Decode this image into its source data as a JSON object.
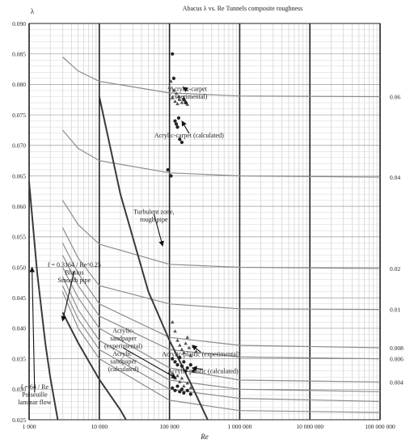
{
  "chart_data": {
    "type": "line",
    "title": "Abacus λ vs. Re Tunnels composite roughness",
    "xlabel": "Re",
    "ylabel": "λ",
    "xscale": "log",
    "xlim": [
      1000,
      100000000
    ],
    "ylim": [
      0.025,
      0.09
    ],
    "grid": true,
    "x_ticks": [
      {
        "value": 1000,
        "label": "1 000"
      },
      {
        "value": 10000,
        "label": "10 000"
      },
      {
        "value": 100000,
        "label": "100 000"
      },
      {
        "value": 1000000,
        "label": "1 000 000"
      },
      {
        "value": 10000000,
        "label": "10 000 000"
      },
      {
        "value": 100000000,
        "label": "100 000 000"
      }
    ],
    "y_ticks": [
      "0.025",
      "0.030",
      "0.035",
      "0.040",
      "0.045",
      "0.050",
      "0.055",
      "0.060",
      "0.065",
      "0.070",
      "0.075",
      "0.080",
      "0.085",
      "0.090"
    ],
    "curve_labels": [
      "0.06",
      "0.04",
      "0.02",
      "0.01",
      "0.008",
      "0.006",
      "0.004"
    ],
    "relative_roughness_curves": [
      {
        "label": "0.06",
        "points": [
          [
            3000,
            0.0845
          ],
          [
            5000,
            0.0822
          ],
          [
            10000,
            0.0805
          ],
          [
            100000,
            0.0786
          ],
          [
            1000000,
            0.0781
          ],
          [
            100000000,
            0.078
          ]
        ]
      },
      {
        "label": "0.04",
        "points": [
          [
            3000,
            0.0725
          ],
          [
            5000,
            0.0695
          ],
          [
            10000,
            0.0675
          ],
          [
            100000,
            0.0655
          ],
          [
            1000000,
            0.065
          ],
          [
            100000000,
            0.0648
          ]
        ]
      },
      {
        "label": "0.02",
        "points": [
          [
            3000,
            0.061
          ],
          [
            5000,
            0.057
          ],
          [
            10000,
            0.0538
          ],
          [
            100000,
            0.0505
          ],
          [
            1000000,
            0.05
          ],
          [
            100000000,
            0.0498
          ]
        ]
      },
      {
        "label": "0.01",
        "points": [
          [
            3000,
            0.0565
          ],
          [
            5000,
            0.0515
          ],
          [
            10000,
            0.047
          ],
          [
            100000,
            0.044
          ],
          [
            1000000,
            0.0432
          ],
          [
            100000000,
            0.0431
          ]
        ]
      },
      {
        "label": "0.008",
        "points": [
          [
            3000,
            0.054
          ],
          [
            5000,
            0.049
          ],
          [
            10000,
            0.044
          ],
          [
            100000,
            0.0385
          ],
          [
            1000000,
            0.0372
          ],
          [
            100000000,
            0.0368
          ]
        ]
      },
      {
        "label": "0.006",
        "points": [
          [
            3000,
            0.052
          ],
          [
            5000,
            0.047
          ],
          [
            10000,
            0.042
          ],
          [
            100000,
            0.0365
          ],
          [
            1000000,
            0.0353
          ],
          [
            100000000,
            0.035
          ]
        ]
      },
      {
        "label": "0.004",
        "points": [
          [
            3000,
            0.05
          ],
          [
            5000,
            0.045
          ],
          [
            10000,
            0.04
          ],
          [
            100000,
            0.0335
          ],
          [
            1000000,
            0.0315
          ],
          [
            100000000,
            0.0312
          ]
        ]
      },
      {
        "label": "",
        "points": [
          [
            3000,
            0.0485
          ],
          [
            5000,
            0.043
          ],
          [
            10000,
            0.038
          ],
          [
            100000,
            0.0315
          ],
          [
            1000000,
            0.03
          ],
          [
            100000000,
            0.0296
          ]
        ]
      },
      {
        "label": "",
        "points": [
          [
            3000,
            0.047
          ],
          [
            5000,
            0.0415
          ],
          [
            10000,
            0.0365
          ],
          [
            100000,
            0.03
          ],
          [
            1000000,
            0.0285
          ],
          [
            100000000,
            0.028
          ]
        ]
      },
      {
        "label": "",
        "points": [
          [
            3000,
            0.046
          ],
          [
            5000,
            0.04
          ],
          [
            10000,
            0.035
          ],
          [
            100000,
            0.0282
          ],
          [
            1000000,
            0.0265
          ],
          [
            100000000,
            0.0262
          ]
        ]
      }
    ],
    "reference_curves": [
      {
        "name": "f = 64 / Re Poiseuille laminar flow",
        "points": [
          [
            1000,
            0.064
          ],
          [
            1300,
            0.0492
          ],
          [
            1700,
            0.0376
          ],
          [
            2000,
            0.032
          ],
          [
            2560,
            0.025
          ]
        ]
      },
      {
        "name": "f = 0.3164 / Re^0.25 Blasius Smooth pipe",
        "points": [
          [
            3000,
            0.0426
          ],
          [
            5000,
            0.0376
          ],
          [
            10000,
            0.0316
          ],
          [
            20000,
            0.0266
          ],
          [
            24000,
            0.025
          ]
        ]
      },
      {
        "name": "Turbulent zone, rough pipe",
        "points": [
          [
            10000,
            0.078
          ],
          [
            20000,
            0.062
          ],
          [
            50000,
            0.046
          ],
          [
            100000,
            0.038
          ],
          [
            200000,
            0.031
          ],
          [
            350000,
            0.025
          ]
        ]
      }
    ],
    "series": [
      {
        "name": "Acrylic-carpet (experimental)",
        "marker": "triangle",
        "points": [
          [
            100000,
            0.0795
          ],
          [
            105000,
            0.0805
          ],
          [
            110000,
            0.0778
          ],
          [
            115000,
            0.079
          ],
          [
            120000,
            0.0772
          ],
          [
            125000,
            0.0785
          ],
          [
            130000,
            0.0768
          ],
          [
            135000,
            0.078
          ],
          [
            140000,
            0.0775
          ],
          [
            150000,
            0.077
          ],
          [
            160000,
            0.0778
          ],
          [
            170000,
            0.0772
          ],
          [
            180000,
            0.0767
          ]
        ]
      },
      {
        "name": "Acrylic-carpet (calculated)",
        "marker": "circle",
        "points": [
          [
            95000,
            0.066
          ],
          [
            105000,
            0.065
          ],
          [
            110000,
            0.085
          ],
          [
            115000,
            0.081
          ],
          [
            120000,
            0.074
          ],
          [
            125000,
            0.0735
          ],
          [
            130000,
            0.073
          ],
          [
            135000,
            0.0745
          ],
          [
            140000,
            0.071
          ],
          [
            150000,
            0.0705
          ],
          [
            160000,
            0.0775
          ],
          [
            170000,
            0.077
          ]
        ]
      },
      {
        "name": "Acrylic-plastic (experimental)",
        "marker": "triangle",
        "points": [
          [
            110000,
            0.041
          ],
          [
            120000,
            0.0395
          ],
          [
            130000,
            0.038
          ],
          [
            140000,
            0.0372
          ],
          [
            150000,
            0.0365
          ],
          [
            160000,
            0.036
          ],
          [
            170000,
            0.0375
          ],
          [
            180000,
            0.0385
          ],
          [
            190000,
            0.0368
          ],
          [
            200000,
            0.0355
          ],
          [
            220000,
            0.037
          ],
          [
            240000,
            0.0362
          ]
        ]
      },
      {
        "name": "Acrylic-plastic (calculated)",
        "marker": "circle",
        "points": [
          [
            110000,
            0.035
          ],
          [
            120000,
            0.0345
          ],
          [
            130000,
            0.034
          ],
          [
            140000,
            0.0352
          ],
          [
            150000,
            0.0338
          ],
          [
            160000,
            0.0345
          ],
          [
            170000,
            0.033
          ],
          [
            180000,
            0.0335
          ],
          [
            200000,
            0.034
          ],
          [
            220000,
            0.033
          ]
        ]
      },
      {
        "name": "Acrylic-sandpaper (experimental)",
        "marker": "triangle",
        "points": [
          [
            110000,
            0.0325
          ],
          [
            120000,
            0.0318
          ],
          [
            130000,
            0.0322
          ],
          [
            140000,
            0.0312
          ],
          [
            150000,
            0.0318
          ],
          [
            160000,
            0.0305
          ],
          [
            180000,
            0.031
          ],
          [
            200000,
            0.0302
          ]
        ]
      },
      {
        "name": "Acrylic-sandpaper (calculated)",
        "marker": "circle",
        "points": [
          [
            110000,
            0.0302
          ],
          [
            120000,
            0.0298
          ],
          [
            130000,
            0.0305
          ],
          [
            140000,
            0.0296
          ],
          [
            150000,
            0.03
          ],
          [
            160000,
            0.0294
          ],
          [
            180000,
            0.0298
          ],
          [
            200000,
            0.0292
          ]
        ]
      }
    ],
    "annotations": [
      {
        "lines": [
          "Acrylic-carpet",
          "(experimental)"
        ],
        "at": [
          185000,
          0.0787
        ],
        "arrow_to": [
          155000,
          0.0795
        ]
      },
      {
        "lines": [
          "Acrylic-carpet (calculated)"
        ],
        "at": [
          190000,
          0.0717
        ],
        "arrow_to": [
          150000,
          0.074
        ]
      },
      {
        "lines": [
          "Turbulent zone,",
          "rough pipe"
        ],
        "at": [
          60000,
          0.0585
        ],
        "arrow_to": [
          80000,
          0.0535
        ]
      },
      {
        "lines": [
          "f = 0.3164 / Re^0.25",
          "Blasius",
          "Smooth pipe"
        ],
        "at": [
          4400,
          0.0492
        ],
        "arrow_to": [
          3000,
          0.0412
        ]
      },
      {
        "lines": [
          "Acrylic-plastic (experimental)"
        ],
        "at": [
          280000,
          0.0358
        ],
        "arrow_to": [
          210000,
          0.0372
        ]
      },
      {
        "lines": [
          "Acrylic-plastic (calculated)"
        ],
        "at": [
          300000,
          0.033
        ],
        "arrow_to": [
          210000,
          0.0335
        ]
      },
      {
        "lines": [
          "Acrylic-",
          "sandpaper",
          "(experimental)",
          "Acrylic-",
          "sandpaper",
          "(calculated)"
        ],
        "at": [
          22000,
          0.0365
        ],
        "arrow_to": [
          125000,
          0.0318
        ]
      },
      {
        "lines": [
          "f = 64 / Re",
          "Poiseuille",
          "laminar flow"
        ],
        "at": [
          1200,
          0.0292
        ],
        "arrow_to": [
          1100,
          0.05
        ]
      }
    ]
  }
}
